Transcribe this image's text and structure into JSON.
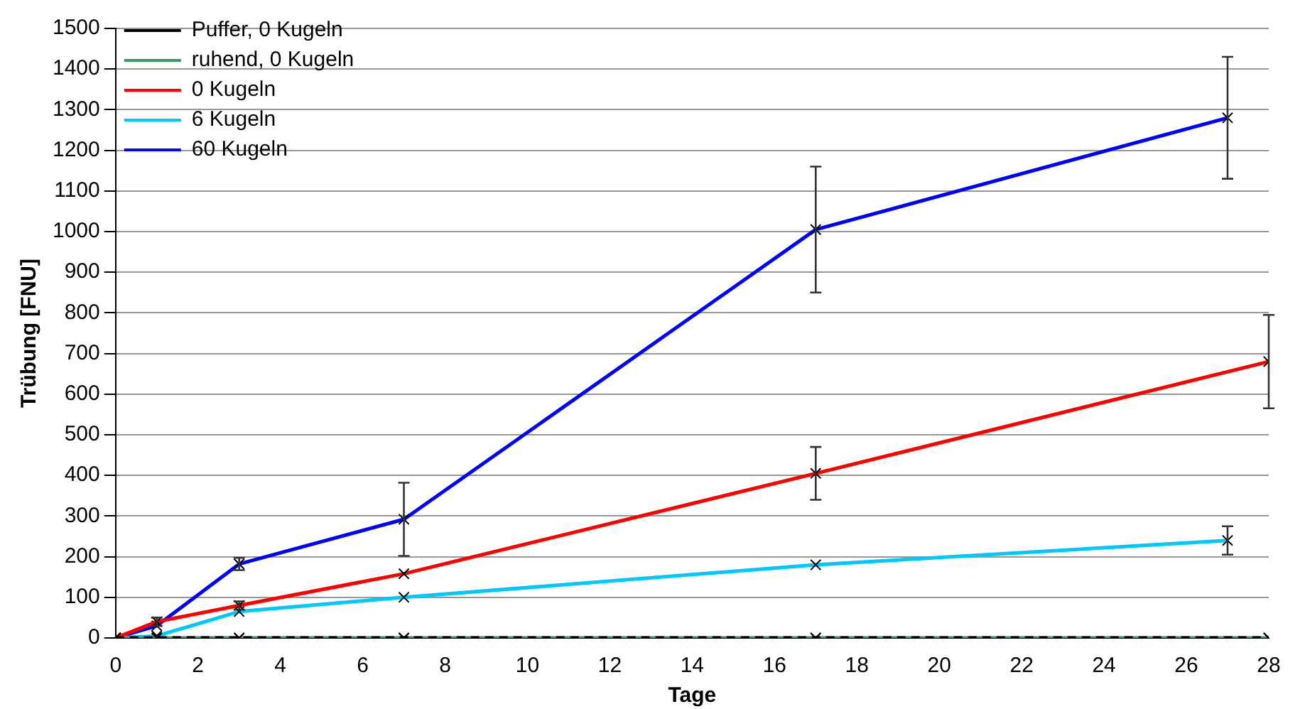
{
  "chart_data": {
    "type": "line",
    "xlabel": "Tage",
    "ylabel": "Trübung [FNU]",
    "xlim": [
      0,
      28
    ],
    "xticks": [
      0,
      2,
      4,
      6,
      8,
      10,
      12,
      14,
      16,
      18,
      20,
      22,
      24,
      26,
      28
    ],
    "ylim": [
      0,
      1500
    ],
    "yticks": [
      0,
      100,
      200,
      300,
      400,
      500,
      600,
      700,
      800,
      900,
      1000,
      1100,
      1200,
      1300,
      1400,
      1500
    ],
    "grid": "y",
    "legend": "top left",
    "marker": "cross",
    "series": [
      {
        "name": "Puffer, 0 Kugeln",
        "color": "#000000",
        "line_style": "dashed",
        "x": [
          0,
          1,
          3,
          7,
          17,
          28
        ],
        "values": [
          0,
          0,
          0,
          0,
          0,
          0
        ]
      },
      {
        "name": "ruhend, 0 Kugeln",
        "color": "#3a9a6a",
        "x": [
          0,
          1,
          3,
          7,
          17,
          28
        ],
        "values": [
          0,
          0,
          0,
          0,
          0,
          0
        ]
      },
      {
        "name": "0 Kugeln",
        "color": "#ff0000",
        "x": [
          0,
          1,
          3,
          7,
          17,
          28
        ],
        "values": [
          0,
          40,
          80,
          158,
          405,
          680
        ],
        "errors": [
          null,
          10,
          10,
          null,
          65,
          115
        ]
      },
      {
        "name": "6 Kugeln",
        "color": "#00c8ff",
        "x": [
          0,
          1,
          3,
          7,
          17,
          27
        ],
        "values": [
          0,
          5,
          65,
          100,
          180,
          240
        ],
        "errors": [
          null,
          null,
          null,
          null,
          null,
          35
        ]
      },
      {
        "name": "60 Kugeln",
        "color": "#0000ff",
        "x": [
          0,
          1,
          3,
          7,
          17,
          27
        ],
        "values": [
          0,
          30,
          182,
          292,
          1005,
          1280
        ],
        "errors": [
          null,
          null,
          15,
          90,
          155,
          150
        ]
      }
    ]
  }
}
